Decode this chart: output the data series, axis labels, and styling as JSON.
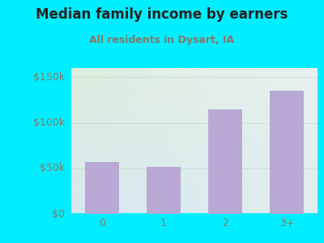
{
  "title": "Median family income by earners",
  "subtitle": "All residents in Dysart, IA",
  "categories": [
    "0",
    "1",
    "2",
    "3+"
  ],
  "values": [
    57000,
    52000,
    115000,
    135000
  ],
  "bar_color": "#b8a9d4",
  "bar_edgecolor": "#b8a9d4",
  "background_outer": "#00eeff",
  "background_inner_topleft": "#ddeedd",
  "background_inner_bottomright": "#d8e8f0",
  "title_color": "#222222",
  "subtitle_color": "#887766",
  "tick_label_color": "#887766",
  "ytick_labels": [
    "$0",
    "$50k",
    "$100k",
    "$150k"
  ],
  "ytick_values": [
    0,
    50000,
    100000,
    150000
  ],
  "ylim": [
    0,
    160000
  ],
  "title_fontsize": 12,
  "subtitle_fontsize": 9,
  "tick_fontsize": 9
}
